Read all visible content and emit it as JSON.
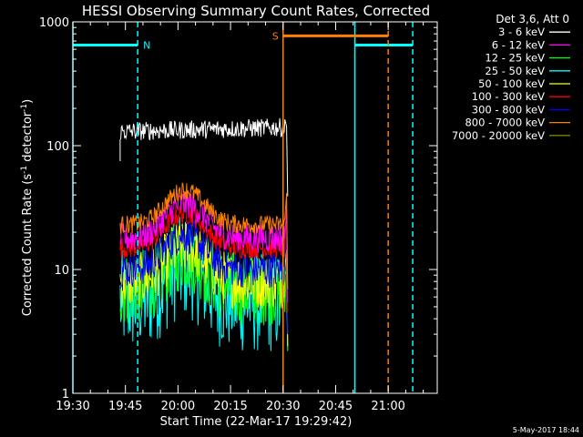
{
  "chart_data": {
    "type": "line",
    "title": "HESSI Observing Summary Count Rates, Corrected",
    "xlabel": "Start Time (22-Mar-17 19:29:42)",
    "ylabel_parts": [
      "Corrected Count Rate (s",
      "-1",
      " detector",
      "-1",
      ")"
    ],
    "x_ticks": [
      {
        "t": 0,
        "label": "19:30"
      },
      {
        "t": 15,
        "label": "19:45"
      },
      {
        "t": 30,
        "label": "20:00"
      },
      {
        "t": 45,
        "label": "20:15"
      },
      {
        "t": 60,
        "label": "20:30"
      },
      {
        "t": 75,
        "label": "20:45"
      },
      {
        "t": 90,
        "label": "21:00"
      }
    ],
    "x_range_minutes": [
      0,
      104
    ],
    "y_scale": "log",
    "y_range": [
      1,
      1000
    ],
    "y_ticks": [
      {
        "v": 1,
        "label": "1"
      },
      {
        "v": 10,
        "label": "10"
      },
      {
        "v": 100,
        "label": "100"
      },
      {
        "v": 1000,
        "label": "1000"
      }
    ],
    "legend_title": "Det 3,6, Att 0",
    "legend_placement": "top-right",
    "series": [
      {
        "name": "3 - 6 keV",
        "color": "#ffffff",
        "base": 130,
        "noise": 0.05
      },
      {
        "name": "6 - 12 keV",
        "color": "#ff00ff",
        "base": 18,
        "noise": 0.08
      },
      {
        "name": "12 - 25 keV",
        "color": "#00ff00",
        "base": 7,
        "noise": 0.2
      },
      {
        "name": "25 - 50 keV",
        "color": "#00ffff",
        "base": 5.5,
        "noise": 0.28
      },
      {
        "name": "50 - 100 keV",
        "color": "#ffff00",
        "base": 8,
        "noise": 0.15
      },
      {
        "name": "100 - 300 keV",
        "color": "#ff0000",
        "base": 15,
        "noise": 0.06
      },
      {
        "name": "300 - 800 keV",
        "color": "#0000ff",
        "base": 10,
        "noise": 0.1
      },
      {
        "name": "800 - 7000 keV",
        "color": "#ff8000",
        "base": 23,
        "noise": 0.05
      },
      {
        "name": "7000 - 20000 keV",
        "color": "#808000",
        "base": 0,
        "noise": 0
      }
    ],
    "data_interval_minutes": [
      13.5,
      60.5
    ],
    "bump_center_minutes": 32,
    "night_markers": {
      "color": "#00ffff",
      "label": "N",
      "level": 650,
      "bars": [
        [
          0,
          18.5
        ],
        [
          80.5,
          97
        ]
      ],
      "solid_lines": [
        0,
        80.5
      ],
      "dashed_lines": [
        18.5,
        97
      ]
    },
    "saa_markers": {
      "color": "#ff8000",
      "label": "S",
      "level": 770,
      "bars": [
        [
          60,
          90
        ]
      ],
      "solid_lines": [
        60
      ],
      "dashed_lines": [
        90
      ]
    },
    "footer_date": "5-May-2017 18:44",
    "colors": {
      "background": "#000000",
      "foreground": "#ffffff"
    }
  }
}
